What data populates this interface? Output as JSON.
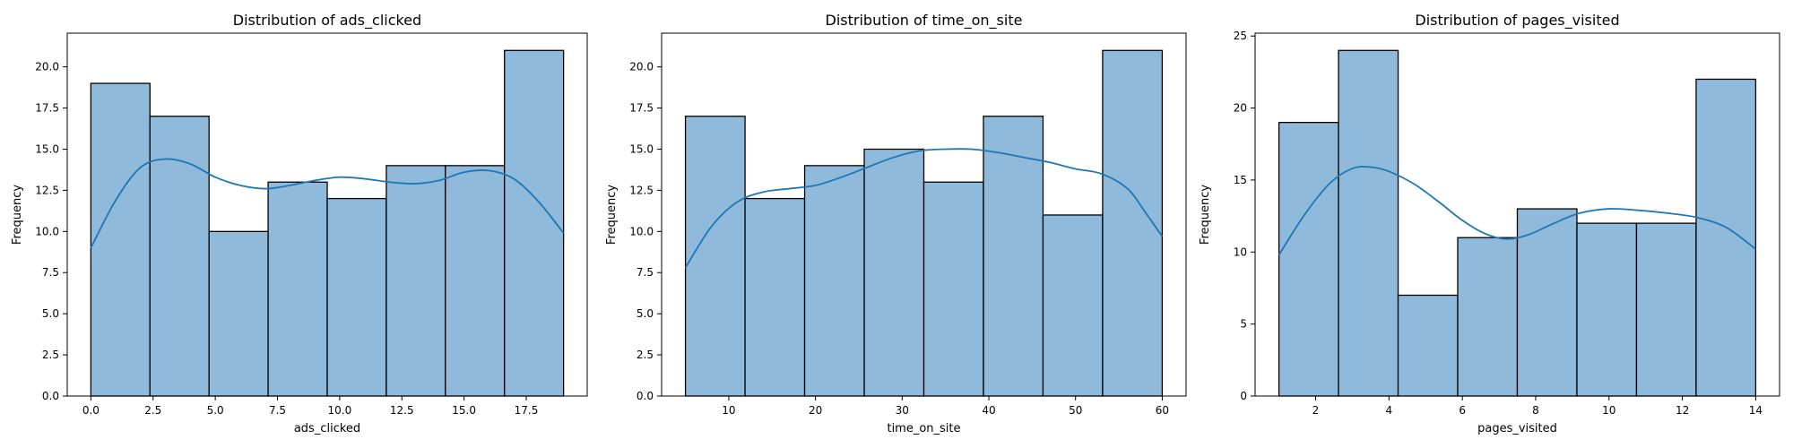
{
  "colors": {
    "bar_fill": "#8fbadb",
    "bar_edge": "#000000",
    "kde_line": "#1f77b4",
    "axis": "#000000"
  },
  "chart_data": [
    {
      "type": "bar",
      "title": "Distribution of ads_clicked",
      "xlabel": "ads_clicked",
      "ylabel": "Frequency",
      "xlim": [
        -0.95,
        19.95
      ],
      "ylim": [
        0,
        22.05
      ],
      "grid": false,
      "bin_edges": [
        0,
        2.375,
        4.75,
        7.125,
        9.5,
        11.875,
        14.25,
        16.625,
        19
      ],
      "values": [
        19,
        17,
        10,
        13,
        12,
        14,
        14,
        21
      ],
      "xticks": [
        0.0,
        2.5,
        5.0,
        7.5,
        10.0,
        12.5,
        15.0,
        17.5
      ],
      "xtick_labels": [
        "0.0",
        "2.5",
        "5.0",
        "7.5",
        "10.0",
        "12.5",
        "15.0",
        "17.5"
      ],
      "yticks": [
        0,
        2.5,
        5,
        7.5,
        10,
        12.5,
        15,
        17.5,
        20
      ],
      "ytick_labels": [
        "0.0",
        "2.5",
        "5.0",
        "7.5",
        "10.0",
        "12.5",
        "15.0",
        "17.5",
        "20.0"
      ],
      "kde": {
        "x": [
          0,
          1,
          2,
          3,
          4,
          5,
          6,
          7,
          8,
          9,
          10,
          11,
          12,
          13,
          14,
          15,
          16,
          17,
          18,
          19
        ],
        "y": [
          9.0,
          11.9,
          13.9,
          14.4,
          14.1,
          13.3,
          12.8,
          12.6,
          12.8,
          13.1,
          13.3,
          13.2,
          13.0,
          12.9,
          13.1,
          13.6,
          13.7,
          13.2,
          11.8,
          9.9
        ]
      }
    },
    {
      "type": "bar",
      "title": "Distribution of time_on_site",
      "xlabel": "time_on_site",
      "ylabel": "Frequency",
      "xlim": [
        2.25,
        62.75
      ],
      "ylim": [
        0,
        22.05
      ],
      "grid": false,
      "bin_edges": [
        5,
        11.875,
        18.75,
        25.625,
        32.5,
        39.375,
        46.25,
        53.125,
        60
      ],
      "values": [
        17,
        12,
        14,
        15,
        13,
        17,
        11,
        21
      ],
      "xticks": [
        10,
        20,
        30,
        40,
        50,
        60
      ],
      "xtick_labels": [
        "10",
        "20",
        "30",
        "40",
        "50",
        "60"
      ],
      "yticks": [
        0,
        2.5,
        5,
        7.5,
        10,
        12.5,
        15,
        17.5,
        20
      ],
      "ytick_labels": [
        "0.0",
        "2.5",
        "5.0",
        "7.5",
        "10.0",
        "12.5",
        "15.0",
        "17.5",
        "20.0"
      ],
      "kde": {
        "x": [
          5,
          8,
          11,
          14,
          17,
          20,
          23,
          26,
          29,
          32,
          35,
          38,
          41,
          44,
          47,
          50,
          53,
          56,
          58,
          60
        ],
        "y": [
          7.8,
          10.3,
          11.8,
          12.4,
          12.6,
          12.8,
          13.3,
          13.9,
          14.5,
          14.9,
          15.0,
          15.0,
          14.8,
          14.5,
          14.2,
          13.8,
          13.5,
          12.6,
          11.2,
          9.7
        ]
      }
    },
    {
      "type": "bar",
      "title": "Distribution of pages_visited",
      "xlabel": "pages_visited",
      "ylabel": "Frequency",
      "xlim": [
        0.35,
        14.65
      ],
      "ylim": [
        0,
        25.2
      ],
      "grid": false,
      "bin_edges": [
        1,
        2.625,
        4.25,
        5.875,
        7.5,
        9.125,
        10.75,
        12.375,
        14
      ],
      "values": [
        19,
        24,
        7,
        11,
        13,
        12,
        12,
        22
      ],
      "xticks": [
        2,
        4,
        6,
        8,
        10,
        12,
        14
      ],
      "xtick_labels": [
        "2",
        "4",
        "6",
        "8",
        "10",
        "12",
        "14"
      ],
      "yticks": [
        0,
        5,
        10,
        15,
        20,
        25
      ],
      "ytick_labels": [
        "0",
        "5",
        "10",
        "15",
        "20",
        "25"
      ],
      "kde": {
        "x": [
          1,
          1.7,
          2.4,
          3.0,
          3.5,
          4.0,
          4.7,
          5.4,
          6.0,
          6.6,
          7.2,
          7.8,
          8.5,
          9.2,
          10.0,
          10.8,
          11.6,
          12.4,
          13.2,
          14.0
        ],
        "y": [
          9.8,
          12.6,
          14.8,
          15.8,
          15.9,
          15.6,
          14.7,
          13.4,
          12.2,
          11.3,
          10.9,
          11.2,
          12.0,
          12.7,
          13.0,
          12.9,
          12.7,
          12.4,
          11.7,
          10.2
        ]
      }
    }
  ]
}
